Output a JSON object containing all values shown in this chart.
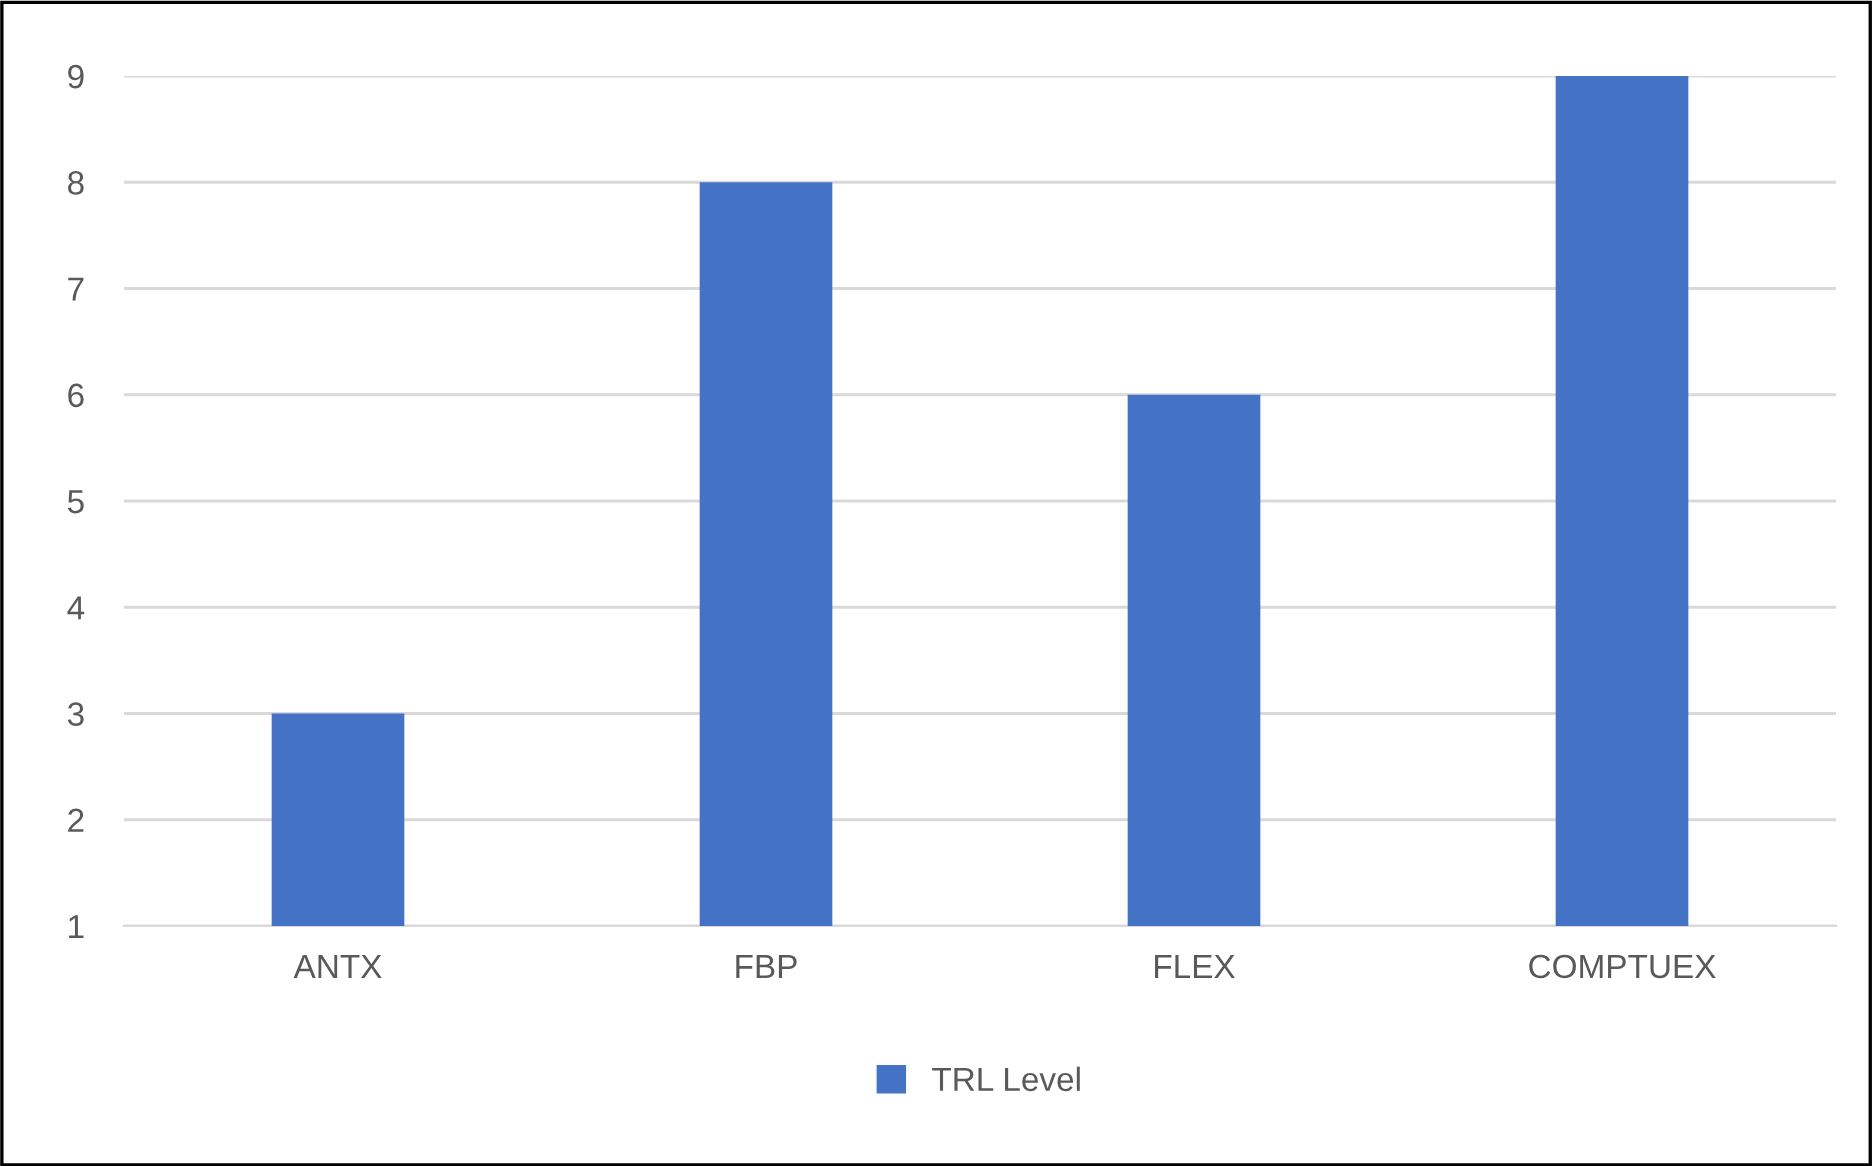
{
  "chart_data": {
    "type": "bar",
    "categories": [
      "ANTX",
      "FBP",
      "FLEX",
      "COMPTUEX"
    ],
    "series": [
      {
        "name": "TRL Level",
        "color": "#4472c4",
        "values": [
          3,
          8,
          6,
          9
        ]
      }
    ],
    "ylim": [
      1,
      9
    ],
    "yticks": [
      1,
      2,
      3,
      4,
      5,
      6,
      7,
      8,
      9
    ],
    "grid": "y",
    "legend": "bottom"
  }
}
